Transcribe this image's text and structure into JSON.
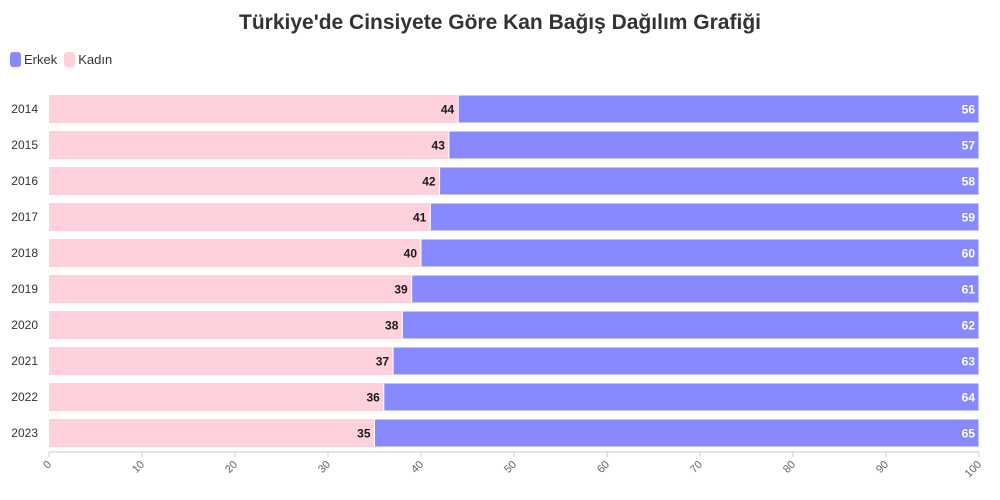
{
  "chart_data": {
    "type": "bar",
    "orientation": "horizontal",
    "stacked": true,
    "title": "Türkiye'de Cinsiyete Göre Kan Bağış Dağılım Grafiği",
    "categories": [
      "2014",
      "2015",
      "2016",
      "2017",
      "2018",
      "2019",
      "2020",
      "2021",
      "2022",
      "2023"
    ],
    "series": [
      {
        "name": "Kadın",
        "color": "#ffd1dc",
        "label_color": "#1a1a1a",
        "values": [
          44,
          43,
          42,
          41,
          40,
          39,
          38,
          37,
          36,
          35
        ]
      },
      {
        "name": "Erkek",
        "color": "#8888ff",
        "label_color": "#ffffff",
        "values": [
          56,
          57,
          58,
          59,
          60,
          61,
          62,
          63,
          64,
          65
        ]
      }
    ],
    "legend_order": [
      "Erkek",
      "Kadın"
    ],
    "xlim": [
      0,
      100
    ],
    "xticks": [
      "0",
      "10",
      "20",
      "30",
      "40",
      "50",
      "60",
      "70",
      "80",
      "90",
      "100"
    ],
    "legend_position": "top-left",
    "grid": false
  }
}
